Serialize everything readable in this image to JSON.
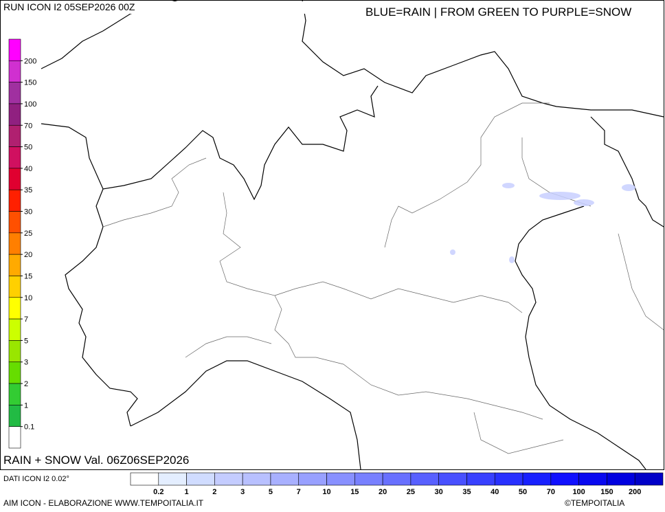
{
  "header": {
    "run": "RUN ICON I2 05SEP2026 00Z",
    "legend_note": "BLUE=RAIN | FROM GREEN TO PURPLE=SNOW"
  },
  "snow_scale": {
    "labels": [
      "200",
      "150",
      "100",
      "70",
      "50",
      "40",
      "35",
      "30",
      "25",
      "20",
      "15",
      "10",
      "7",
      "5",
      "3",
      "2",
      "1",
      "0.1"
    ],
    "colors": [
      "#ff00ff",
      "#d030d0",
      "#a030a0",
      "#902080",
      "#b02070",
      "#d01060",
      "#e00030",
      "#ff2000",
      "#ff5000",
      "#ff7f00",
      "#ffaa00",
      "#ffd000",
      "#ffff00",
      "#ccff00",
      "#99e600",
      "#66dd00",
      "#33cc33",
      "#22bb44",
      "#ffffff"
    ]
  },
  "rain_scale": {
    "labels": [
      "0.2",
      "1",
      "2",
      "3",
      "5",
      "7",
      "10",
      "15",
      "20",
      "25",
      "30",
      "35",
      "40",
      "50",
      "70",
      "100",
      "150",
      "200"
    ],
    "colors": [
      "#ffffff",
      "#e4eeff",
      "#d0dcff",
      "#c4ccff",
      "#b8c0ff",
      "#a8b0ff",
      "#98a0ff",
      "#8890ff",
      "#7880ff",
      "#6870ff",
      "#5860ff",
      "#4850ff",
      "#3840ff",
      "#2830ff",
      "#1820ff",
      "#1010ff",
      "#0808f0",
      "#0000e0",
      "#0000c8"
    ]
  },
  "footer": {
    "product": "RAIN + SNOW Val. 06Z06SEP2026",
    "data_source": "DATI ICON I2 0.02°",
    "credit": "AIM ICON - ELABORAZIONE WWW.TEMPOITALIA.IT",
    "copyright": "©TEMPOITALIA"
  }
}
